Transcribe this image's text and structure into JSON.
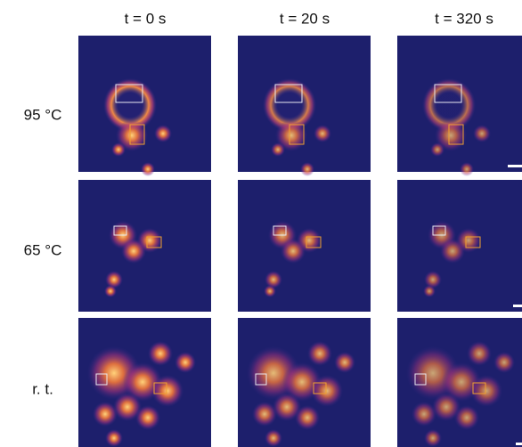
{
  "columns": [
    "t = 0 s",
    "t = 20 s",
    "t = 320 s"
  ],
  "rows": [
    "95 °C",
    "65 °C",
    "r. t."
  ]
}
